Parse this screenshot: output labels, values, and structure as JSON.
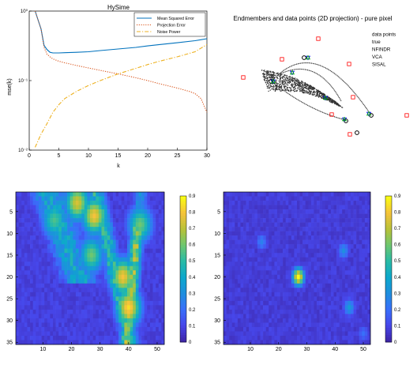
{
  "chart_data": [
    {
      "type": "line",
      "title": "HySime",
      "xlabel": "k",
      "ylabel": "mse(k)",
      "xlim": [
        0,
        30
      ],
      "ylim": [
        0.01,
        1
      ],
      "yscale": "log",
      "xticks": [
        0,
        5,
        10,
        15,
        20,
        25,
        30
      ],
      "yticks": [
        0.01,
        0.1,
        1
      ],
      "ytick_labels": [
        "10⁻²",
        "10⁻¹",
        "10⁰"
      ],
      "legend_position": "top-right",
      "series": [
        {
          "name": "Mean Squared Error",
          "color": "#0072bd",
          "style": "solid",
          "x": [
            1,
            2,
            2.5,
            3,
            3.5,
            4,
            5,
            6,
            8,
            10,
            12,
            15,
            18,
            20,
            22,
            25,
            28,
            30
          ],
          "y": [
            1.0,
            0.55,
            0.32,
            0.28,
            0.255,
            0.25,
            0.25,
            0.252,
            0.255,
            0.26,
            0.27,
            0.285,
            0.3,
            0.315,
            0.33,
            0.35,
            0.375,
            0.4
          ]
        },
        {
          "name": "Projection Error",
          "color": "#d95319",
          "style": "dotted",
          "x": [
            1,
            2,
            2.5,
            3,
            3.5,
            4,
            5,
            6,
            8,
            10,
            12,
            15,
            18,
            20,
            22,
            25,
            27,
            28,
            29,
            30
          ],
          "y": [
            1.0,
            0.55,
            0.3,
            0.24,
            0.22,
            0.205,
            0.19,
            0.18,
            0.165,
            0.152,
            0.14,
            0.125,
            0.11,
            0.1,
            0.09,
            0.078,
            0.07,
            0.065,
            0.055,
            0.035
          ]
        },
        {
          "name": "Noise Power",
          "color": "#edb120",
          "style": "dashdot",
          "x": [
            1,
            2,
            3,
            4,
            5,
            6,
            8,
            10,
            12,
            15,
            18,
            20,
            22,
            25,
            28,
            30
          ],
          "y": [
            0.011,
            0.017,
            0.024,
            0.035,
            0.045,
            0.055,
            0.07,
            0.085,
            0.1,
            0.125,
            0.15,
            0.17,
            0.19,
            0.22,
            0.26,
            0.33
          ]
        }
      ]
    },
    {
      "type": "scatter",
      "title": "Endmembers and data points (2D projection) - pure pixel",
      "legend_position": "top-right",
      "series": [
        {
          "name": "data points",
          "marker": "dot",
          "color": "#000000"
        },
        {
          "name": "true",
          "marker": "circle",
          "color": "#000000",
          "points": [
            [
              27,
              78
            ],
            [
              62,
              70
            ],
            [
              40,
              28
            ],
            [
              70,
              88
            ],
            [
              54,
              96
            ]
          ]
        },
        {
          "name": "NFINDR",
          "marker": "triangle-down",
          "color": "#0000ff",
          "points": [
            [
              30,
              75
            ],
            [
              61,
              70
            ],
            [
              38,
              31
            ],
            [
              67,
              86
            ],
            [
              51,
              92
            ]
          ]
        },
        {
          "name": "VCA",
          "marker": "triangle-up",
          "color": "#00aa00",
          "points": [
            [
              30,
              75
            ],
            [
              61,
              70
            ],
            [
              38,
              31
            ],
            [
              67,
              86
            ],
            [
              51,
              92
            ]
          ]
        },
        {
          "name": "SISAL",
          "marker": "square",
          "color": "#ff0000",
          "points": [
            [
              23,
              70
            ],
            [
              34,
              38
            ],
            [
              44,
              14
            ],
            [
              53,
              45
            ],
            [
              55,
              85
            ],
            [
              60,
              110
            ],
            [
              100,
              88
            ],
            [
              82,
              105
            ]
          ]
        }
      ]
    },
    {
      "type": "heatmap",
      "xlim": [
        1,
        52
      ],
      "ylim": [
        1,
        35
      ],
      "xticks": [
        10,
        20,
        30,
        40,
        50
      ],
      "yticks": [
        5,
        10,
        15,
        20,
        25,
        30,
        35
      ],
      "colorbar": {
        "min": 0,
        "max": 0.9,
        "ticks": [
          0,
          0.1,
          0.2,
          0.3,
          0.4,
          0.5,
          0.6,
          0.7,
          0.8,
          0.9
        ]
      },
      "colormap": "parula",
      "description_values": {
        "peaks": [
          {
            "x": 40,
            "y": 27,
            "value": 0.85
          },
          {
            "x": 38,
            "y": 20,
            "value": 0.8
          },
          {
            "x": 28,
            "y": 6,
            "value": 0.8
          },
          {
            "x": 22,
            "y": 3,
            "value": 0.75
          },
          {
            "x": 44,
            "y": 8,
            "value": 0.6
          },
          {
            "x": 14,
            "y": 7,
            "value": 0.55
          },
          {
            "x": 27,
            "y": 15,
            "value": 0.6
          }
        ],
        "background": 0.05
      }
    },
    {
      "type": "heatmap",
      "xlim": [
        1,
        52
      ],
      "ylim": [
        1,
        35
      ],
      "xticks": [
        10,
        20,
        30,
        40,
        50
      ],
      "yticks": [
        5,
        10,
        15,
        20,
        25,
        30,
        35
      ],
      "colorbar": {
        "min": 0,
        "max": 0.9,
        "ticks": [
          0,
          0.1,
          0.2,
          0.3,
          0.4,
          0.5,
          0.6,
          0.7,
          0.8,
          0.9
        ]
      },
      "colormap": "parula",
      "description_values": {
        "peaks": [
          {
            "x": 27,
            "y": 20,
            "value": 0.9
          },
          {
            "x": 45,
            "y": 27,
            "value": 0.35
          },
          {
            "x": 43,
            "y": 14,
            "value": 0.3
          },
          {
            "x": 14,
            "y": 12,
            "value": 0.25
          },
          {
            "x": 50,
            "y": 33,
            "value": 0.2
          }
        ],
        "background": 0.04
      }
    }
  ]
}
